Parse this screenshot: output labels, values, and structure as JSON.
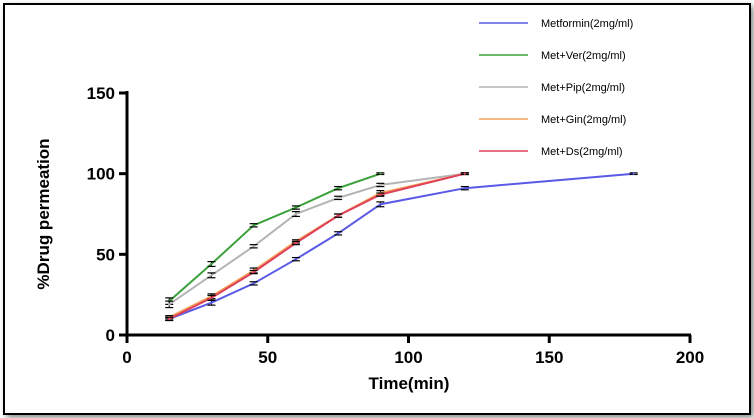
{
  "chart_data": {
    "type": "line",
    "title": "",
    "xlabel": "Time(min)",
    "ylabel": "%Drug permeation",
    "xlim": [
      0,
      200
    ],
    "ylim": [
      0,
      150
    ],
    "xticks": [
      0,
      50,
      100,
      150,
      200
    ],
    "yticks": [
      0,
      50,
      100,
      150
    ],
    "grid": false,
    "legend_position": "top-right",
    "series": [
      {
        "name": "Metformin(2mg/ml)",
        "color": "#5a5ae6",
        "x": [
          15,
          30,
          45,
          60,
          75,
          90,
          120,
          180
        ],
        "y": [
          10,
          20,
          32,
          47,
          63,
          81,
          91,
          100
        ],
        "err": [
          1,
          1.5,
          1,
          1,
          1,
          1.5,
          1,
          0.5
        ]
      },
      {
        "name": "Met+Ver(2mg/ml)",
        "color": "#3aa03a",
        "x": [
          15,
          30,
          45,
          60,
          75,
          90
        ],
        "y": [
          21,
          44,
          68,
          79,
          91,
          100
        ],
        "err": [
          2,
          1.5,
          1,
          1,
          1,
          0.5
        ]
      },
      {
        "name": "Met+Pip(2mg/ml)",
        "color": "#b4b4b4",
        "x": [
          15,
          30,
          45,
          60,
          75,
          90,
          120
        ],
        "y": [
          19,
          37,
          55,
          75,
          85,
          93,
          100
        ],
        "err": [
          2,
          1.5,
          1,
          1.5,
          1,
          1,
          0.5
        ]
      },
      {
        "name": "Met+Gin(2mg/ml)",
        "color": "#f2a35a",
        "x": [
          15,
          30,
          45,
          60,
          75,
          90,
          120
        ],
        "y": [
          11,
          24,
          40,
          58,
          74,
          88,
          100
        ],
        "err": [
          1,
          1.5,
          1.5,
          1,
          1,
          1.5,
          0.5
        ]
      },
      {
        "name": "Met+Ds(2mg/ml)",
        "color": "#e0405a",
        "x": [
          15,
          30,
          45,
          60,
          75,
          90,
          120
        ],
        "y": [
          10,
          23,
          39,
          57,
          74,
          87,
          100
        ],
        "err": [
          1,
          1.5,
          1,
          1,
          1,
          1,
          0.5
        ]
      }
    ]
  }
}
